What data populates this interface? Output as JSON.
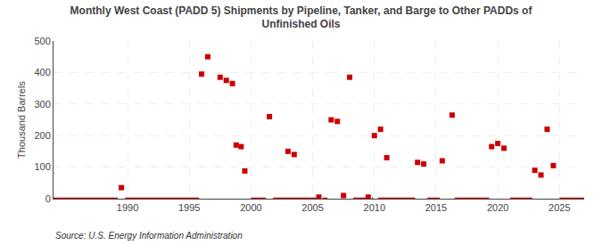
{
  "chart_data": {
    "type": "scatter",
    "title": "Monthly West Coast (PADD 5) Shipments by Pipeline, Tanker, and Barge to Other PADDs of\nUnfinished Oils",
    "ylabel": "Thousand Barrels",
    "annotations": [
      "Source: U.S. Energy Information Administration"
    ],
    "xlim": [
      1984,
      2027
    ],
    "xticks": [
      1990,
      1995,
      2000,
      2005,
      2010,
      2015,
      2020,
      2025
    ],
    "ylim": [
      0,
      500
    ],
    "yticks": [
      0,
      100,
      200,
      300,
      400,
      500
    ],
    "grid": true,
    "series": [
      {
        "type": "line",
        "color": "#cc0000",
        "x": [
          1984,
          1989.2,
          null,
          1989.8,
          1995.8,
          null,
          2000.0,
          2001.2,
          null,
          2001.8,
          2005.3,
          null,
          2005.8,
          2006.2,
          null,
          2008.3,
          2009.3,
          null,
          2009.8,
          2009.9,
          null,
          2010.3,
          2013.3,
          null,
          2014.3,
          2015.3,
          null,
          2016.5,
          2019.3,
          null,
          2021.0,
          2022.8,
          null,
          2025.0,
          2027.0
        ],
        "values": [
          0,
          0,
          null,
          0,
          0,
          null,
          0,
          0,
          null,
          0,
          0,
          null,
          0,
          0,
          null,
          0,
          0,
          null,
          0,
          0,
          null,
          0,
          0,
          null,
          0,
          0,
          null,
          0,
          0,
          null,
          0,
          0,
          null,
          0,
          0
        ]
      },
      {
        "type": "scatter",
        "color": "#cc0000",
        "marker": "square",
        "x": [
          1989.5,
          1996.0,
          1996.5,
          1997.5,
          1998.0,
          1998.5,
          1998.8,
          1999.2,
          1999.5,
          2001.5,
          2003.0,
          2003.5,
          2005.5,
          2006.5,
          2007.0,
          2007.5,
          2008.0,
          2009.5,
          2010.0,
          2010.5,
          2011.0,
          2013.5,
          2014.0,
          2015.5,
          2016.3,
          2019.5,
          2020.0,
          2020.5,
          2023.0,
          2023.5,
          2024.0,
          2024.5
        ],
        "values": [
          35,
          395,
          450,
          385,
          375,
          365,
          170,
          165,
          88,
          260,
          150,
          140,
          5,
          250,
          245,
          10,
          385,
          5,
          200,
          220,
          130,
          115,
          110,
          120,
          265,
          165,
          175,
          160,
          90,
          75,
          220,
          105
        ]
      }
    ]
  }
}
